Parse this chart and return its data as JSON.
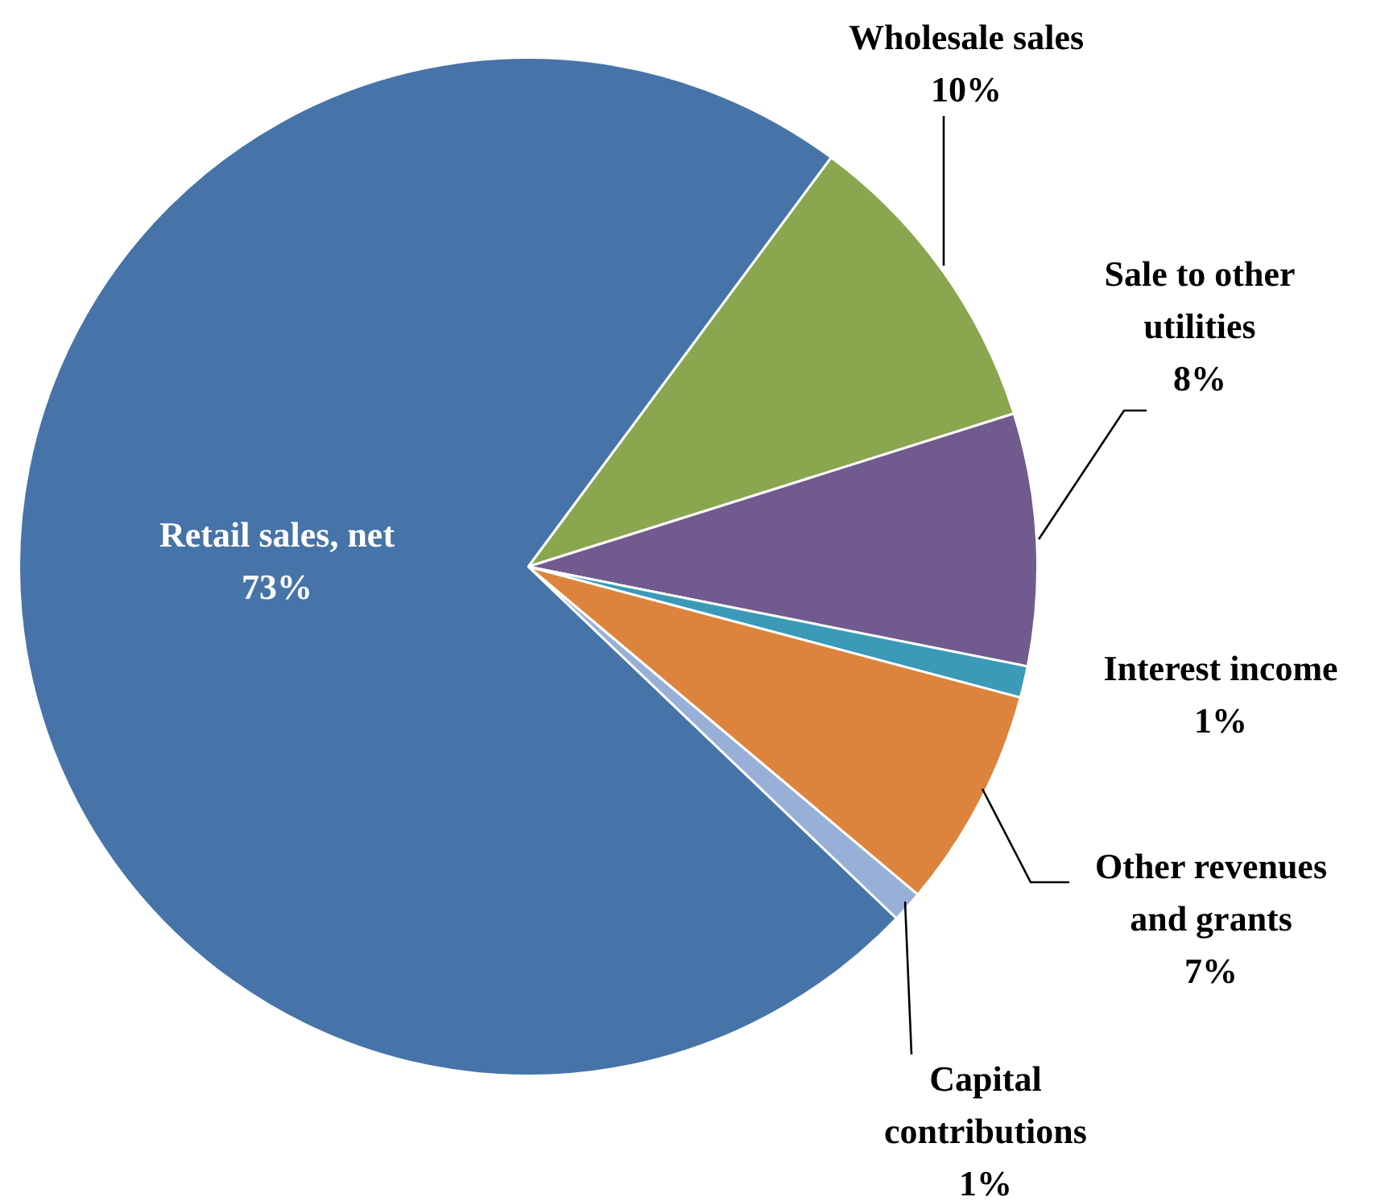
{
  "chart_data": {
    "type": "pie",
    "categories": [
      "Wholesale sales",
      "Sale to other utilities",
      "Interest income",
      "Other revenues and grants",
      "Capital contributions",
      "Retail sales, net"
    ],
    "values": [
      10,
      8,
      1,
      7,
      1,
      73
    ],
    "value_labels": [
      "10%",
      "8%",
      "1%",
      "7%",
      "1%",
      "73%"
    ],
    "colors": [
      "#8aa64f",
      "#715a8e",
      "#3a9ab8",
      "#dc843d",
      "#98b0d8",
      "#4674a8"
    ],
    "legend": false
  }
}
